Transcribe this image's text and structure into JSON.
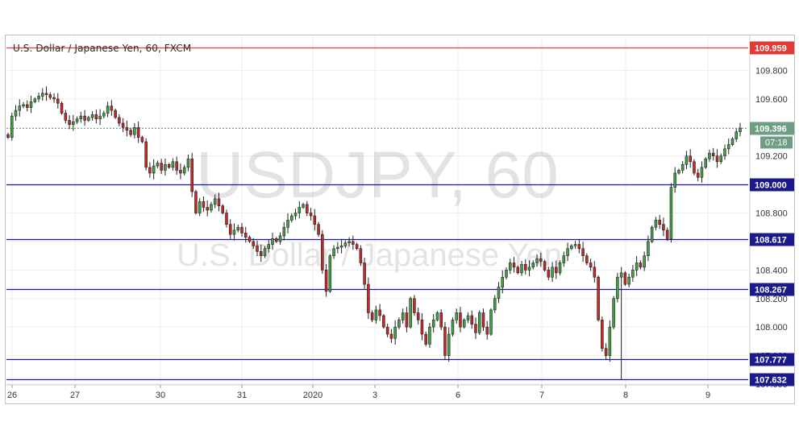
{
  "chart_data": {
    "type": "candlestick",
    "title": "U.S. Dollar / Japanese Yen, 60, FXCM",
    "watermark": {
      "symbol": "USDJPY, 60",
      "name": "U.S. Dollar / Japanese Yen"
    },
    "ylim": [
      107.6,
      110.04
    ],
    "y_ticks": [
      "109.800",
      "109.600",
      "109.400",
      "109.200",
      "109.000",
      "108.800",
      "108.600",
      "108.400",
      "108.200",
      "108.000",
      "107.800",
      "107.600"
    ],
    "x_labels": [
      "26",
      "27",
      "30",
      "31",
      "2020",
      "3",
      "6",
      "7",
      "8",
      "9"
    ],
    "price_label": {
      "value": "109.396",
      "countdown": "07:18"
    },
    "horizontal_lines": [
      {
        "label": "109.959",
        "value": 109.959,
        "color": "#e53935"
      },
      {
        "label": "109.000",
        "value": 109.0,
        "color": "#1a1a8c"
      },
      {
        "label": "108.617",
        "value": 108.617,
        "color": "#1a1a8c"
      },
      {
        "label": "108.267",
        "value": 108.267,
        "color": "#1a1a8c"
      },
      {
        "label": "107.777",
        "value": 107.777,
        "color": "#1a1a8c"
      },
      {
        "label": "107.632",
        "value": 107.632,
        "color": "#1a1a8c"
      }
    ],
    "last_price_line": 109.396,
    "colors": {
      "up": "#43a047",
      "down": "#c62828",
      "wick": "#222222",
      "axis_text": "#333333",
      "grid": "#eeeeee",
      "price_tag": "#6f9e85"
    },
    "close_series": [
      109.33,
      109.48,
      109.52,
      109.55,
      109.56,
      109.54,
      109.58,
      109.6,
      109.62,
      109.64,
      109.63,
      109.61,
      109.6,
      109.57,
      109.5,
      109.45,
      109.42,
      109.44,
      109.46,
      109.48,
      109.45,
      109.47,
      109.49,
      109.46,
      109.48,
      109.5,
      109.55,
      109.52,
      109.47,
      109.43,
      109.4,
      109.38,
      109.35,
      109.4,
      109.33,
      109.3,
      109.12,
      109.08,
      109.13,
      109.15,
      109.1,
      109.14,
      109.12,
      109.16,
      109.1,
      109.08,
      109.12,
      109.18,
      108.95,
      108.8,
      108.88,
      108.84,
      108.82,
      108.86,
      108.9,
      108.85,
      108.8,
      108.72,
      108.65,
      108.68,
      108.7,
      108.66,
      108.63,
      108.6,
      108.57,
      108.53,
      108.5,
      108.55,
      108.58,
      108.62,
      108.6,
      108.64,
      108.7,
      108.75,
      108.78,
      108.8,
      108.84,
      108.86,
      108.8,
      108.78,
      108.72,
      108.65,
      108.4,
      108.25,
      108.5,
      108.55,
      108.56,
      108.57,
      108.59,
      108.6,
      108.58,
      108.55,
      108.45,
      108.3,
      108.1,
      108.05,
      108.12,
      108.08,
      108.0,
      107.95,
      107.92,
      108.0,
      108.05,
      108.1,
      108.0,
      108.2,
      108.1,
      108.05,
      107.95,
      107.88,
      108.0,
      108.05,
      108.1,
      108.0,
      107.8,
      107.95,
      108.05,
      108.1,
      108.0,
      108.05,
      108.08,
      108.02,
      107.96,
      108.1,
      108.0,
      107.95,
      108.12,
      108.2,
      108.28,
      108.35,
      108.4,
      108.45,
      108.42,
      108.38,
      108.44,
      108.4,
      108.42,
      108.45,
      108.48,
      108.46,
      108.4,
      108.35,
      108.42,
      108.38,
      108.45,
      108.5,
      108.55,
      108.57,
      108.58,
      108.55,
      108.5,
      108.45,
      108.42,
      108.35,
      108.05,
      107.85,
      107.8,
      108.0,
      108.2,
      108.35,
      108.38,
      108.3,
      108.35,
      108.4,
      108.45,
      108.42,
      108.5,
      108.6,
      108.7,
      108.75,
      108.72,
      108.68,
      108.62,
      108.98,
      109.08,
      109.1,
      109.14,
      109.2,
      109.16,
      109.08,
      109.05,
      109.12,
      109.18,
      109.22,
      109.2,
      109.16,
      109.2,
      109.25,
      109.28,
      109.32,
      109.37,
      109.396
    ]
  }
}
